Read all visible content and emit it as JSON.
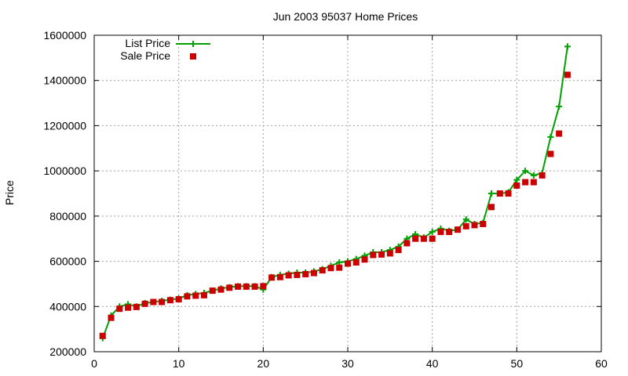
{
  "chart_data": {
    "type": "line",
    "title": "Jun 2003 95037 Home Prices",
    "xlabel": "",
    "ylabel": "Price",
    "xlim": [
      0,
      60
    ],
    "ylim": [
      200000,
      1600000
    ],
    "x_ticks": [
      0,
      10,
      20,
      30,
      40,
      50,
      60
    ],
    "y_ticks": [
      200000,
      400000,
      600000,
      800000,
      1000000,
      1200000,
      1400000,
      1600000
    ],
    "grid": true,
    "legend_position": "top-left",
    "series": [
      {
        "name": "List Price",
        "color": "#00a000",
        "marker": "plus",
        "x": [
          1,
          2,
          3,
          4,
          5,
          6,
          7,
          8,
          9,
          10,
          11,
          12,
          13,
          14,
          15,
          16,
          17,
          18,
          19,
          20,
          21,
          22,
          23,
          24,
          25,
          26,
          27,
          28,
          29,
          30,
          31,
          32,
          33,
          34,
          35,
          36,
          37,
          38,
          39,
          40,
          41,
          42,
          43,
          44,
          45,
          46,
          47,
          48,
          49,
          50,
          51,
          52,
          53,
          54,
          55,
          56
        ],
        "y": [
          260000,
          360000,
          400000,
          410000,
          400000,
          415000,
          420000,
          425000,
          430000,
          435000,
          450000,
          455000,
          460000,
          470000,
          480000,
          485000,
          490000,
          490000,
          490000,
          475000,
          530000,
          540000,
          545000,
          550000,
          550000,
          555000,
          565000,
          580000,
          595000,
          600000,
          610000,
          625000,
          640000,
          640000,
          650000,
          665000,
          700000,
          720000,
          705000,
          730000,
          745000,
          735000,
          740000,
          785000,
          765000,
          770000,
          900000,
          900000,
          905000,
          960000,
          1000000,
          980000,
          990000,
          1150000,
          1285000,
          1550000
        ]
      },
      {
        "name": "Sale Price",
        "color": "#cc0000",
        "marker": "square",
        "x": [
          1,
          2,
          3,
          4,
          5,
          6,
          7,
          8,
          9,
          10,
          11,
          12,
          13,
          14,
          15,
          16,
          17,
          18,
          19,
          20,
          21,
          22,
          23,
          24,
          25,
          26,
          27,
          28,
          29,
          30,
          31,
          32,
          33,
          34,
          35,
          36,
          37,
          38,
          39,
          40,
          41,
          42,
          43,
          44,
          45,
          46,
          47,
          48,
          49,
          50,
          51,
          52,
          53,
          54,
          55,
          56
        ],
        "y": [
          270000,
          350000,
          390000,
          395000,
          398000,
          412000,
          420000,
          420000,
          428000,
          432000,
          445000,
          448000,
          450000,
          470000,
          475000,
          483000,
          488000,
          488000,
          488000,
          490000,
          528000,
          530000,
          538000,
          540000,
          543000,
          548000,
          560000,
          570000,
          572000,
          590000,
          595000,
          608000,
          628000,
          630000,
          635000,
          650000,
          680000,
          700000,
          700000,
          700000,
          730000,
          730000,
          740000,
          755000,
          760000,
          765000,
          840000,
          900000,
          900000,
          935000,
          950000,
          950000,
          980000,
          1075000,
          1165000,
          1425000
        ]
      }
    ]
  }
}
